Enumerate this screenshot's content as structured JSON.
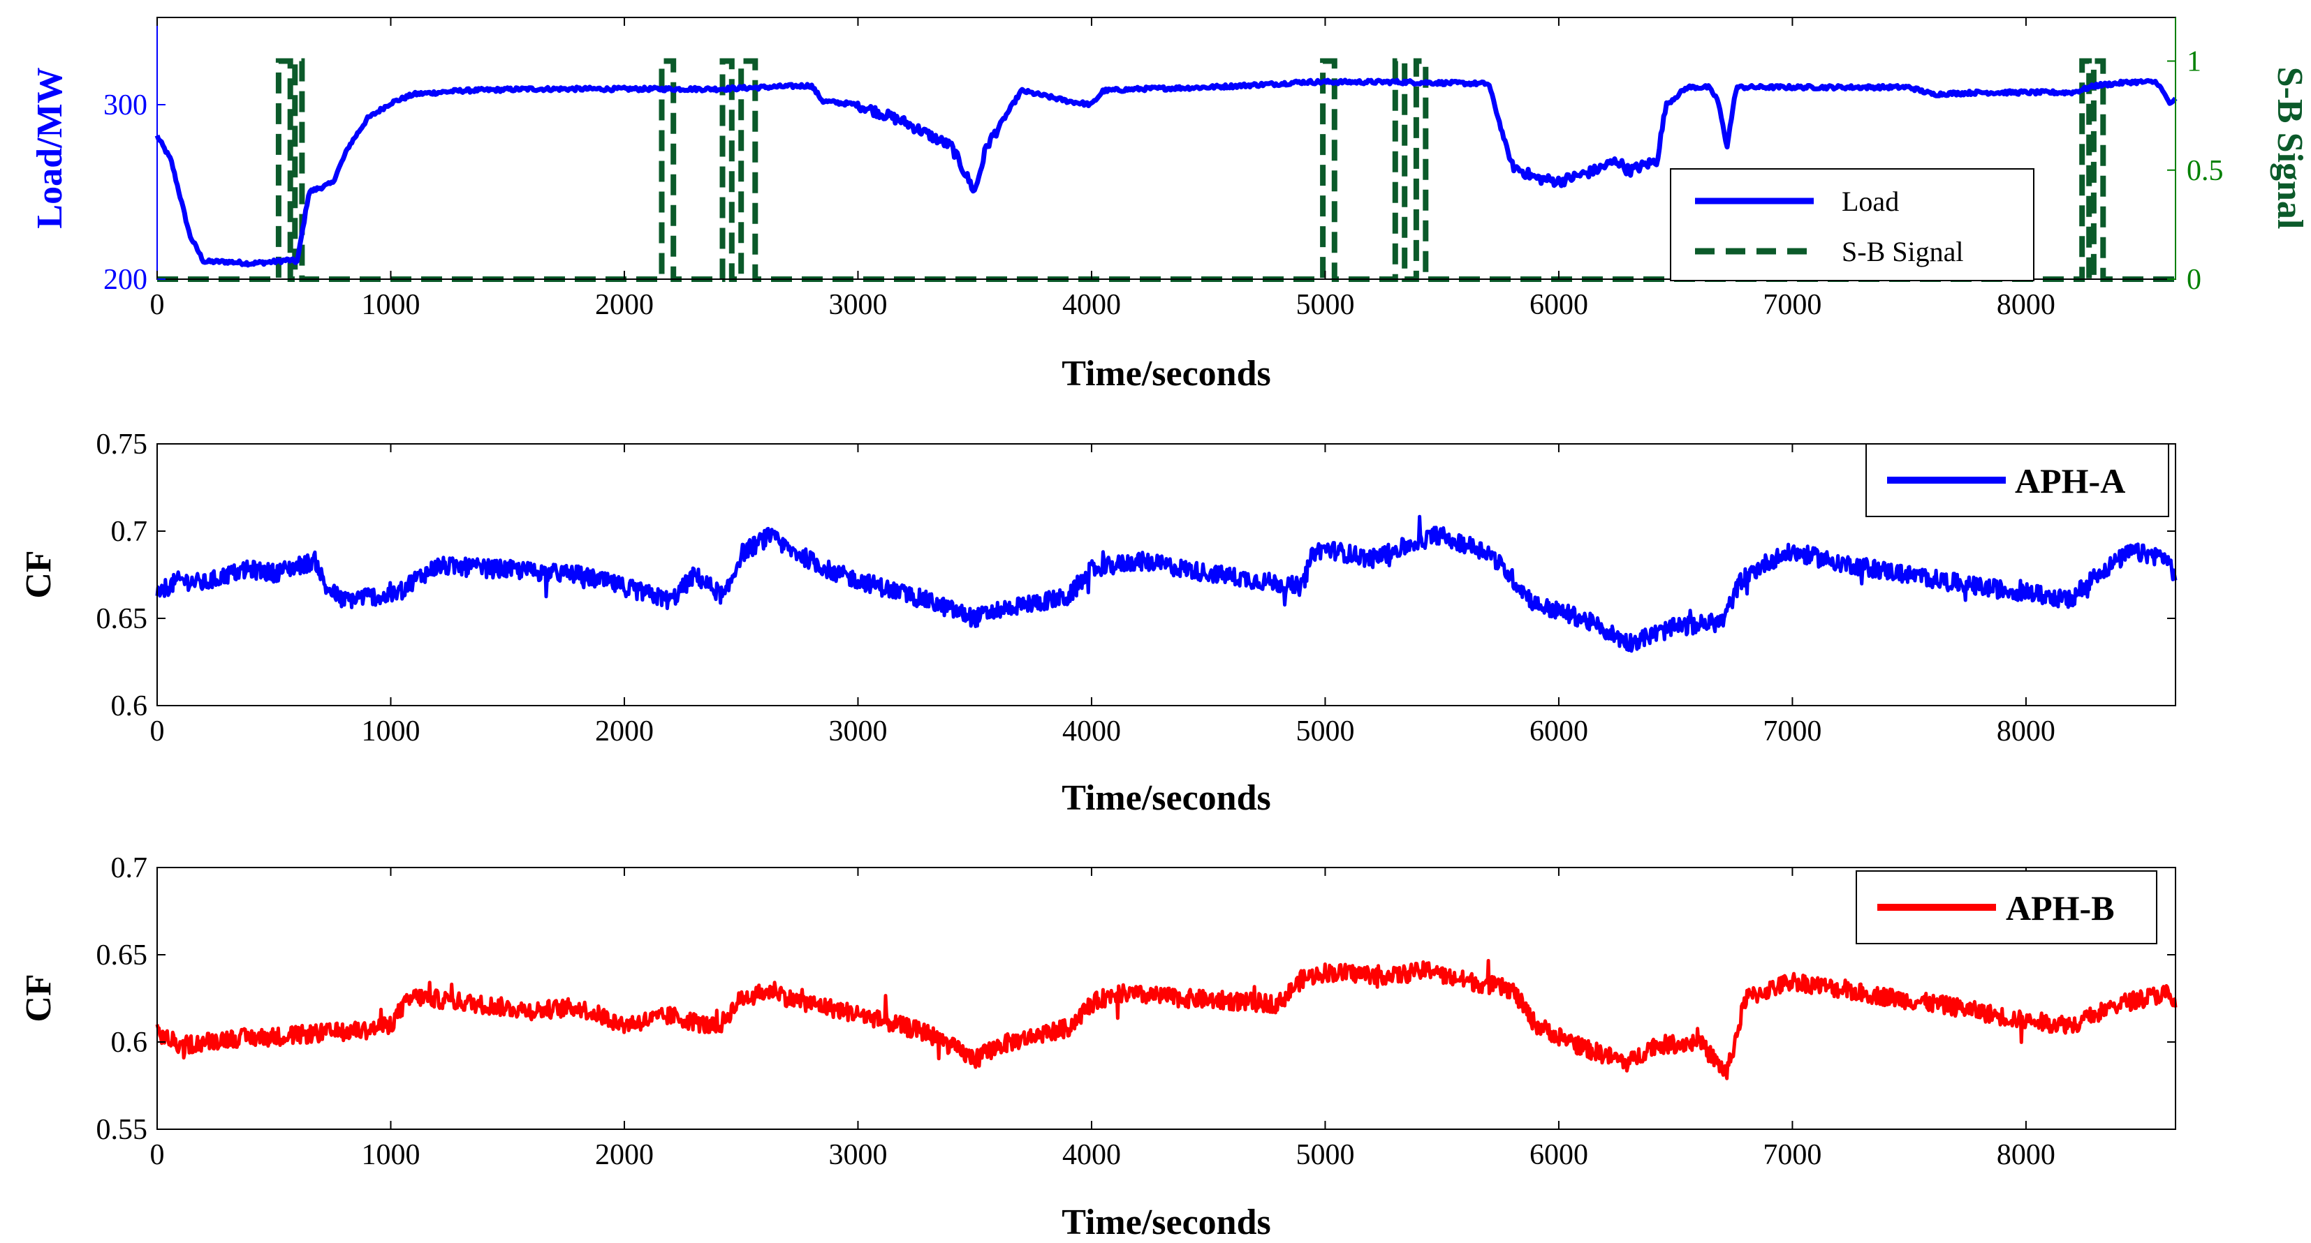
{
  "chart_data": [
    {
      "type": "line",
      "xlabel": "Time/seconds",
      "ylabel": "Load/MW",
      "ylabel_right": "S-B Signal",
      "xlim": [
        0,
        8640
      ],
      "ylim": [
        200,
        350
      ],
      "ylim_right": [
        0,
        1.2
      ],
      "x_ticks": [
        "0",
        "1000",
        "2000",
        "3000",
        "4000",
        "5000",
        "6000",
        "7000",
        "8000"
      ],
      "y_ticks": [
        "200",
        "300"
      ],
      "y_ticks_right": [
        "0",
        "0.5",
        "1"
      ],
      "colors": {
        "load": "#0000ff",
        "signal": "#0b5a2a",
        "right_axis": "#008000"
      },
      "legend": {
        "position": "lower-right",
        "entries": [
          "Load",
          "S-B Signal"
        ]
      },
      "series": [
        {
          "name": "Load",
          "axis": "left",
          "x": [
            0,
            60,
            140,
            200,
            300,
            400,
            500,
            560,
            600,
            650,
            750,
            820,
            900,
            1000,
            1100,
            1300,
            1600,
            2000,
            2400,
            2800,
            2850,
            3000,
            3200,
            3400,
            3500,
            3550,
            3700,
            3900,
            4000,
            4050,
            4200,
            4500,
            4800,
            4900,
            5000,
            5300,
            5700,
            5760,
            5800,
            5900,
            6000,
            6150,
            6250,
            6300,
            6420,
            6460,
            6550,
            6640,
            6680,
            6720,
            6760,
            7000,
            7500,
            7600,
            7800,
            8000,
            8200,
            8300,
            8450,
            8560,
            8620,
            8640
          ],
          "values": [
            282,
            268,
            225,
            210,
            210,
            209,
            210,
            211,
            210,
            250,
            255,
            276,
            292,
            301,
            306,
            308,
            309,
            309,
            309,
            311,
            302,
            300,
            290,
            276,
            250,
            276,
            308,
            302,
            300,
            308,
            309,
            310,
            312,
            313,
            313,
            313,
            312,
            283,
            265,
            258,
            256,
            262,
            268,
            262,
            268,
            300,
            310,
            310,
            303,
            276,
            310,
            310,
            310,
            306,
            307,
            307,
            307,
            311,
            313,
            313,
            300,
            303
          ]
        },
        {
          "name": "S-B Signal",
          "axis": "right",
          "line_style": "dashed",
          "pulses": [
            [
              520,
              570
            ],
            [
              590,
              620
            ],
            [
              2160,
              2210
            ],
            [
              2420,
              2460
            ],
            [
              2500,
              2560
            ],
            [
              4990,
              5040
            ],
            [
              5300,
              5340
            ],
            [
              5390,
              5430
            ],
            [
              8240,
              8270
            ],
            [
              8290,
              8330
            ]
          ],
          "pulse_high": 1,
          "pulse_low": 0
        }
      ]
    },
    {
      "type": "line",
      "xlabel": "Time/seconds",
      "ylabel": "CF",
      "xlim": [
        0,
        8640
      ],
      "ylim": [
        0.6,
        0.75
      ],
      "x_ticks": [
        "0",
        "1000",
        "2000",
        "3000",
        "4000",
        "5000",
        "6000",
        "7000",
        "8000"
      ],
      "y_ticks": [
        "0.6",
        "0.65",
        "0.7",
        "0.75"
      ],
      "legend": {
        "position": "top-right",
        "entries": [
          "APH-A"
        ]
      },
      "series": [
        {
          "name": "APH-A",
          "color": "#0000ff",
          "x": [
            0,
            100,
            200,
            300,
            400,
            500,
            600,
            680,
            720,
            800,
            900,
            1000,
            1100,
            1200,
            1500,
            1800,
            2000,
            2200,
            2300,
            2430,
            2500,
            2620,
            2700,
            2900,
            3100,
            3300,
            3500,
            3600,
            3800,
            3900,
            4000,
            4200,
            4500,
            4900,
            4950,
            5000,
            5200,
            5480,
            5700,
            5800,
            5900,
            6100,
            6300,
            6500,
            6700,
            6780,
            6900,
            7000,
            7200,
            7500,
            7800,
            8000,
            8200,
            8240,
            8300,
            8450,
            8600,
            8640
          ],
          "values": [
            0.665,
            0.672,
            0.67,
            0.675,
            0.678,
            0.676,
            0.68,
            0.683,
            0.668,
            0.66,
            0.663,
            0.662,
            0.672,
            0.68,
            0.678,
            0.675,
            0.668,
            0.66,
            0.675,
            0.662,
            0.687,
            0.697,
            0.69,
            0.676,
            0.668,
            0.66,
            0.65,
            0.655,
            0.66,
            0.662,
            0.678,
            0.683,
            0.676,
            0.668,
            0.688,
            0.69,
            0.684,
            0.698,
            0.688,
            0.673,
            0.658,
            0.65,
            0.636,
            0.645,
            0.648,
            0.672,
            0.683,
            0.688,
            0.682,
            0.675,
            0.668,
            0.665,
            0.66,
            0.668,
            0.675,
            0.688,
            0.685,
            0.674
          ]
        }
      ]
    },
    {
      "type": "line",
      "xlabel": "Time/seconds",
      "ylabel": "CF",
      "xlim": [
        0,
        8640
      ],
      "ylim": [
        0.55,
        0.7
      ],
      "x_ticks": [
        "0",
        "1000",
        "2000",
        "3000",
        "4000",
        "5000",
        "6000",
        "7000",
        "8000"
      ],
      "y_ticks": [
        "0.55",
        "0.6",
        "0.65",
        "0.7"
      ],
      "legend": {
        "position": "top-right",
        "entries": [
          "APH-B"
        ]
      },
      "series": [
        {
          "name": "APH-B",
          "color": "#ff0000",
          "x": [
            0,
            100,
            200,
            300,
            500,
            700,
            900,
            1000,
            1050,
            1100,
            1300,
            1600,
            1800,
            2000,
            2200,
            2400,
            2500,
            2650,
            2700,
            3000,
            3300,
            3500,
            3600,
            3800,
            3900,
            4000,
            4100,
            4400,
            4800,
            4900,
            5000,
            5300,
            5480,
            5500,
            5800,
            5900,
            6100,
            6300,
            6400,
            6600,
            6720,
            6800,
            6900,
            7000,
            7300,
            7700,
            8000,
            8200,
            8400,
            8600,
            8640
          ],
          "values": [
            0.605,
            0.598,
            0.6,
            0.602,
            0.603,
            0.605,
            0.607,
            0.61,
            0.62,
            0.626,
            0.623,
            0.618,
            0.62,
            0.61,
            0.615,
            0.608,
            0.625,
            0.63,
            0.625,
            0.616,
            0.605,
            0.59,
            0.598,
            0.605,
            0.608,
            0.622,
            0.628,
            0.625,
            0.622,
            0.636,
            0.64,
            0.638,
            0.642,
            0.638,
            0.63,
            0.61,
            0.597,
            0.588,
            0.598,
            0.6,
            0.582,
            0.625,
            0.63,
            0.635,
            0.628,
            0.62,
            0.612,
            0.61,
            0.622,
            0.628,
            0.62
          ]
        }
      ]
    }
  ]
}
